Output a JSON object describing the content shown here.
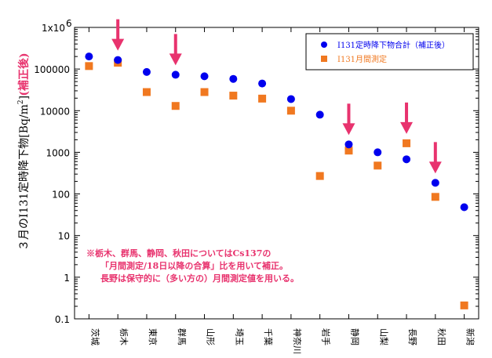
{
  "chart_data": {
    "type": "scatter",
    "yscale": "log",
    "ylim": [
      0.1,
      1000000
    ],
    "ytick_labels": [
      "0.1",
      "1",
      "10",
      "100",
      "1000",
      "10000",
      "100000",
      "1x10"
    ],
    "ytick_top_exponent": "6",
    "ylabel": "３月のI131定時降下物[Bq/m",
    "ylabel_exponent": "2",
    "ylabel_close": "]",
    "ylabel_sub": "(補正後)",
    "categories": [
      "茨城",
      "栃木",
      "東京",
      "群馬",
      "山形",
      "埼玉",
      "千葉",
      "神奈川",
      "岩手",
      "静岡",
      "山梨",
      "長野",
      "秋田",
      "新潟"
    ],
    "series": [
      {
        "name": "I131定時降下物合計（補正後）",
        "marker": "circle",
        "color": "#0000ee",
        "values": [
          200000,
          165000,
          85000,
          73000,
          67000,
          58000,
          45000,
          19000,
          8000,
          1550,
          1000,
          680,
          185,
          48
        ]
      },
      {
        "name": "I131月間測定",
        "marker": "square",
        "color": "#f07820",
        "values": [
          118000,
          142000,
          28000,
          13000,
          28000,
          23000,
          19500,
          10000,
          270,
          1100,
          480,
          1650,
          85,
          0.21
        ]
      }
    ],
    "arrows": [
      1,
      3,
      9,
      11,
      12
    ],
    "arrow_color": "#e8336e",
    "annotation": [
      "※栃木、群馬、静岡、秋田についてはCs137の",
      "「月間測定/18日以降の合算」比を用いて補正。",
      "長野は保守的に（多い方の）月間測定値を用いる。"
    ],
    "annotation_color": "#e8336e",
    "legend_position": "top-right",
    "grid": false
  }
}
